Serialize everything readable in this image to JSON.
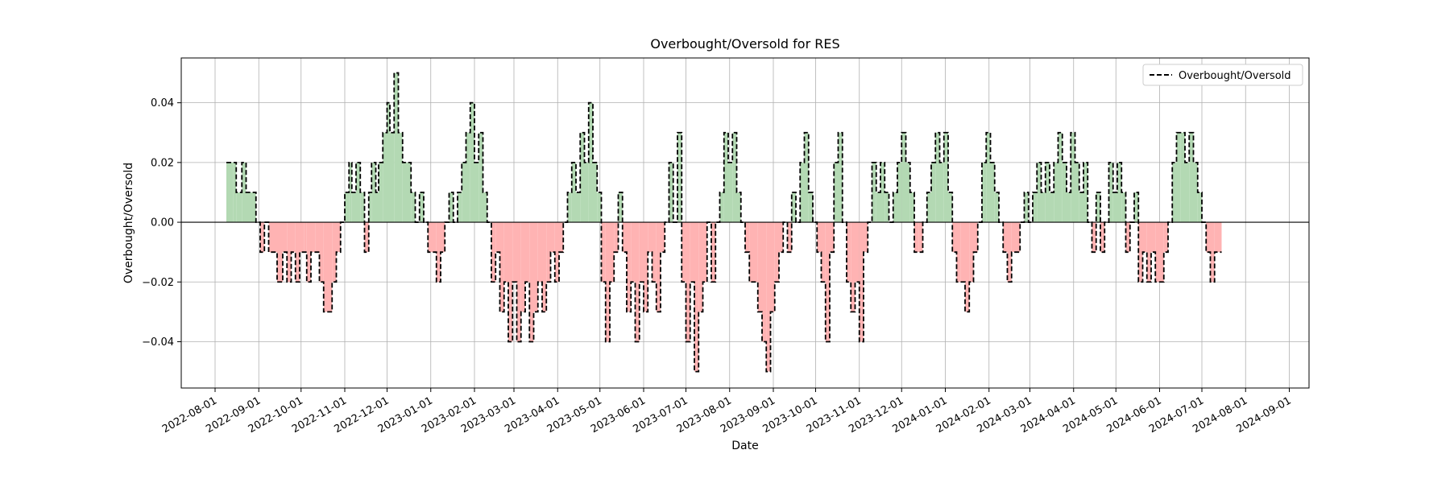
{
  "chart_data": {
    "type": "line",
    "title": "Overbought/Oversold for RES",
    "xlabel": "Date",
    "ylabel": "Overbought/Oversold",
    "x_ticks": [
      "2022-08-01",
      "2022-09-01",
      "2022-10-01",
      "2022-11-01",
      "2022-12-01",
      "2023-01-01",
      "2023-02-01",
      "2023-03-01",
      "2023-04-01",
      "2023-05-01",
      "2023-06-01",
      "2023-07-01",
      "2023-08-01",
      "2023-09-01",
      "2023-10-01",
      "2023-11-01",
      "2023-12-01",
      "2024-01-01",
      "2024-02-01",
      "2024-03-01",
      "2024-04-01",
      "2024-05-01",
      "2024-06-01",
      "2024-07-01",
      "2024-08-01",
      "2024-09-01"
    ],
    "y_ticks": [
      -0.04,
      -0.02,
      0.0,
      0.02,
      0.04
    ],
    "y_tick_labels": [
      "−0.04",
      "−0.02",
      "0.00",
      "0.02",
      "0.04"
    ],
    "xlim": [
      "2022-07-08",
      "2024-09-15"
    ],
    "ylim": [
      -0.0555,
      0.055
    ],
    "grid": true,
    "legend_position": "top-right",
    "zero_line": true,
    "fill_positive_color": "#b3d9b3",
    "fill_negative_color": "#ffb3b3",
    "line_color": "#000000",
    "line_style": "dashed",
    "series": [
      {
        "name": "Overbought/Oversold",
        "points": [
          [
            "2022-08-09",
            0.02
          ],
          [
            "2022-08-14",
            0.02
          ],
          [
            "2022-08-16",
            0.01
          ],
          [
            "2022-08-20",
            0.02
          ],
          [
            "2022-08-23",
            0.01
          ],
          [
            "2022-08-27",
            0.01
          ],
          [
            "2022-08-30",
            0.0
          ],
          [
            "2022-09-02",
            -0.01
          ],
          [
            "2022-09-05",
            0.0
          ],
          [
            "2022-09-08",
            -0.01
          ],
          [
            "2022-09-12",
            -0.01
          ],
          [
            "2022-09-14",
            -0.02
          ],
          [
            "2022-09-18",
            -0.01
          ],
          [
            "2022-09-21",
            -0.02
          ],
          [
            "2022-09-24",
            -0.01
          ],
          [
            "2022-09-27",
            -0.02
          ],
          [
            "2022-09-30",
            -0.01
          ],
          [
            "2022-10-03",
            -0.01
          ],
          [
            "2022-10-05",
            -0.02
          ],
          [
            "2022-10-08",
            -0.01
          ],
          [
            "2022-10-11",
            -0.01
          ],
          [
            "2022-10-14",
            -0.02
          ],
          [
            "2022-10-17",
            -0.03
          ],
          [
            "2022-10-20",
            -0.03
          ],
          [
            "2022-10-23",
            -0.02
          ],
          [
            "2022-10-26",
            -0.01
          ],
          [
            "2022-10-29",
            0.0
          ],
          [
            "2022-11-01",
            0.01
          ],
          [
            "2022-11-04",
            0.02
          ],
          [
            "2022-11-06",
            0.01
          ],
          [
            "2022-11-09",
            0.02
          ],
          [
            "2022-11-12",
            0.01
          ],
          [
            "2022-11-15",
            -0.01
          ],
          [
            "2022-11-18",
            0.01
          ],
          [
            "2022-11-20",
            0.02
          ],
          [
            "2022-11-23",
            0.01
          ],
          [
            "2022-11-25",
            0.02
          ],
          [
            "2022-11-28",
            0.03
          ],
          [
            "2022-12-01",
            0.04
          ],
          [
            "2022-12-03",
            0.03
          ],
          [
            "2022-12-06",
            0.05
          ],
          [
            "2022-12-09",
            0.03
          ],
          [
            "2022-12-12",
            0.02
          ],
          [
            "2022-12-15",
            0.02
          ],
          [
            "2022-12-18",
            0.01
          ],
          [
            "2022-12-21",
            0.0
          ],
          [
            "2022-12-24",
            0.01
          ],
          [
            "2022-12-27",
            0.0
          ],
          [
            "2022-12-30",
            -0.01
          ],
          [
            "2023-01-02",
            -0.01
          ],
          [
            "2023-01-05",
            -0.02
          ],
          [
            "2023-01-08",
            -0.01
          ],
          [
            "2023-01-11",
            0.0
          ],
          [
            "2023-01-14",
            0.01
          ],
          [
            "2023-01-17",
            0.0
          ],
          [
            "2023-01-20",
            0.01
          ],
          [
            "2023-01-23",
            0.02
          ],
          [
            "2023-01-26",
            0.03
          ],
          [
            "2023-01-29",
            0.04
          ],
          [
            "2023-02-01",
            0.02
          ],
          [
            "2023-02-04",
            0.03
          ],
          [
            "2023-02-07",
            0.01
          ],
          [
            "2023-02-10",
            0.0
          ],
          [
            "2023-02-13",
            -0.02
          ],
          [
            "2023-02-16",
            -0.01
          ],
          [
            "2023-02-19",
            -0.03
          ],
          [
            "2023-02-22",
            -0.02
          ],
          [
            "2023-02-25",
            -0.04
          ],
          [
            "2023-02-28",
            -0.02
          ],
          [
            "2023-03-03",
            -0.04
          ],
          [
            "2023-03-06",
            -0.03
          ],
          [
            "2023-03-09",
            -0.02
          ],
          [
            "2023-03-12",
            -0.04
          ],
          [
            "2023-03-15",
            -0.03
          ],
          [
            "2023-03-18",
            -0.02
          ],
          [
            "2023-03-21",
            -0.03
          ],
          [
            "2023-03-24",
            -0.02
          ],
          [
            "2023-03-27",
            -0.01
          ],
          [
            "2023-03-30",
            -0.02
          ],
          [
            "2023-04-02",
            -0.01
          ],
          [
            "2023-04-05",
            0.0
          ],
          [
            "2023-04-08",
            0.01
          ],
          [
            "2023-04-11",
            0.02
          ],
          [
            "2023-04-14",
            0.01
          ],
          [
            "2023-04-17",
            0.03
          ],
          [
            "2023-04-20",
            0.02
          ],
          [
            "2023-04-23",
            0.04
          ],
          [
            "2023-04-26",
            0.02
          ],
          [
            "2023-04-29",
            0.01
          ],
          [
            "2023-05-02",
            -0.02
          ],
          [
            "2023-05-05",
            -0.04
          ],
          [
            "2023-05-08",
            -0.02
          ],
          [
            "2023-05-11",
            -0.01
          ],
          [
            "2023-05-14",
            0.01
          ],
          [
            "2023-05-17",
            -0.01
          ],
          [
            "2023-05-20",
            -0.03
          ],
          [
            "2023-05-23",
            -0.02
          ],
          [
            "2023-05-26",
            -0.04
          ],
          [
            "2023-05-29",
            -0.02
          ],
          [
            "2023-06-01",
            -0.03
          ],
          [
            "2023-06-04",
            -0.01
          ],
          [
            "2023-06-07",
            -0.02
          ],
          [
            "2023-06-10",
            -0.03
          ],
          [
            "2023-06-13",
            -0.01
          ],
          [
            "2023-06-16",
            0.0
          ],
          [
            "2023-06-19",
            0.02
          ],
          [
            "2023-06-22",
            0.0
          ],
          [
            "2023-06-25",
            0.03
          ],
          [
            "2023-06-28",
            -0.02
          ],
          [
            "2023-07-01",
            -0.04
          ],
          [
            "2023-07-04",
            -0.02
          ],
          [
            "2023-07-07",
            -0.05
          ],
          [
            "2023-07-10",
            -0.03
          ],
          [
            "2023-07-13",
            -0.02
          ],
          [
            "2023-07-16",
            0.0
          ],
          [
            "2023-07-19",
            -0.02
          ],
          [
            "2023-07-22",
            0.0
          ],
          [
            "2023-07-25",
            0.01
          ],
          [
            "2023-07-28",
            0.03
          ],
          [
            "2023-07-31",
            0.02
          ],
          [
            "2023-08-03",
            0.03
          ],
          [
            "2023-08-06",
            0.01
          ],
          [
            "2023-08-09",
            0.0
          ],
          [
            "2023-08-12",
            -0.01
          ],
          [
            "2023-08-15",
            -0.02
          ],
          [
            "2023-08-18",
            -0.02
          ],
          [
            "2023-08-21",
            -0.03
          ],
          [
            "2023-08-24",
            -0.04
          ],
          [
            "2023-08-27",
            -0.05
          ],
          [
            "2023-08-30",
            -0.03
          ],
          [
            "2023-09-02",
            -0.02
          ],
          [
            "2023-09-05",
            -0.01
          ],
          [
            "2023-09-08",
            0.0
          ],
          [
            "2023-09-11",
            -0.01
          ],
          [
            "2023-09-14",
            0.01
          ],
          [
            "2023-09-17",
            0.0
          ],
          [
            "2023-09-20",
            0.02
          ],
          [
            "2023-09-23",
            0.03
          ],
          [
            "2023-09-26",
            0.01
          ],
          [
            "2023-09-29",
            0.0
          ],
          [
            "2023-10-02",
            -0.01
          ],
          [
            "2023-10-05",
            -0.02
          ],
          [
            "2023-10-08",
            -0.04
          ],
          [
            "2023-10-11",
            -0.01
          ],
          [
            "2023-10-14",
            0.02
          ],
          [
            "2023-10-17",
            0.03
          ],
          [
            "2023-10-20",
            0.0
          ],
          [
            "2023-10-23",
            -0.02
          ],
          [
            "2023-10-26",
            -0.03
          ],
          [
            "2023-10-29",
            -0.02
          ],
          [
            "2023-11-01",
            -0.04
          ],
          [
            "2023-11-04",
            -0.01
          ],
          [
            "2023-11-07",
            0.0
          ],
          [
            "2023-11-10",
            0.02
          ],
          [
            "2023-11-13",
            0.01
          ],
          [
            "2023-11-16",
            0.02
          ],
          [
            "2023-11-19",
            0.01
          ],
          [
            "2023-11-22",
            0.0
          ],
          [
            "2023-11-25",
            0.01
          ],
          [
            "2023-11-28",
            0.02
          ],
          [
            "2023-12-01",
            0.03
          ],
          [
            "2023-12-04",
            0.02
          ],
          [
            "2023-12-07",
            0.01
          ],
          [
            "2023-12-10",
            -0.01
          ],
          [
            "2023-12-13",
            -0.01
          ],
          [
            "2023-12-16",
            0.0
          ],
          [
            "2023-12-19",
            0.01
          ],
          [
            "2023-12-22",
            0.02
          ],
          [
            "2023-12-25",
            0.03
          ],
          [
            "2023-12-28",
            0.02
          ],
          [
            "2023-12-31",
            0.03
          ],
          [
            "2024-01-03",
            0.01
          ],
          [
            "2024-01-06",
            -0.01
          ],
          [
            "2024-01-09",
            -0.02
          ],
          [
            "2024-01-12",
            -0.02
          ],
          [
            "2024-01-15",
            -0.03
          ],
          [
            "2024-01-18",
            -0.02
          ],
          [
            "2024-01-21",
            -0.01
          ],
          [
            "2024-01-24",
            0.0
          ],
          [
            "2024-01-27",
            0.02
          ],
          [
            "2024-01-30",
            0.03
          ],
          [
            "2024-02-02",
            0.02
          ],
          [
            "2024-02-05",
            0.01
          ],
          [
            "2024-02-08",
            0.0
          ],
          [
            "2024-02-11",
            -0.01
          ],
          [
            "2024-02-14",
            -0.02
          ],
          [
            "2024-02-17",
            -0.01
          ],
          [
            "2024-02-20",
            -0.01
          ],
          [
            "2024-02-23",
            0.0
          ],
          [
            "2024-02-26",
            0.01
          ],
          [
            "2024-02-29",
            0.0
          ],
          [
            "2024-03-03",
            0.01
          ],
          [
            "2024-03-06",
            0.02
          ],
          [
            "2024-03-09",
            0.01
          ],
          [
            "2024-03-12",
            0.02
          ],
          [
            "2024-03-15",
            0.01
          ],
          [
            "2024-03-18",
            0.02
          ],
          [
            "2024-03-21",
            0.03
          ],
          [
            "2024-03-24",
            0.02
          ],
          [
            "2024-03-27",
            0.01
          ],
          [
            "2024-03-30",
            0.03
          ],
          [
            "2024-04-02",
            0.02
          ],
          [
            "2024-04-05",
            0.01
          ],
          [
            "2024-04-08",
            0.02
          ],
          [
            "2024-04-11",
            0.0
          ],
          [
            "2024-04-14",
            -0.01
          ],
          [
            "2024-04-17",
            0.01
          ],
          [
            "2024-04-20",
            -0.01
          ],
          [
            "2024-04-23",
            0.0
          ],
          [
            "2024-04-26",
            0.02
          ],
          [
            "2024-04-29",
            0.01
          ],
          [
            "2024-05-02",
            0.02
          ],
          [
            "2024-05-05",
            0.01
          ],
          [
            "2024-05-08",
            -0.01
          ],
          [
            "2024-05-11",
            0.0
          ],
          [
            "2024-05-14",
            0.01
          ],
          [
            "2024-05-17",
            -0.02
          ],
          [
            "2024-05-20",
            -0.01
          ],
          [
            "2024-05-23",
            -0.02
          ],
          [
            "2024-05-26",
            -0.01
          ],
          [
            "2024-05-29",
            -0.02
          ],
          [
            "2024-06-01",
            -0.02
          ],
          [
            "2024-06-04",
            -0.01
          ],
          [
            "2024-06-07",
            0.0
          ],
          [
            "2024-06-10",
            0.02
          ],
          [
            "2024-06-13",
            0.03
          ],
          [
            "2024-06-16",
            0.03
          ],
          [
            "2024-06-19",
            0.02
          ],
          [
            "2024-06-22",
            0.03
          ],
          [
            "2024-06-25",
            0.02
          ],
          [
            "2024-06-28",
            0.01
          ],
          [
            "2024-07-01",
            0.0
          ],
          [
            "2024-07-04",
            -0.01
          ],
          [
            "2024-07-07",
            -0.02
          ],
          [
            "2024-07-10",
            -0.01
          ],
          [
            "2024-07-13",
            -0.01
          ],
          [
            "2024-07-15",
            -0.01
          ]
        ]
      }
    ]
  }
}
